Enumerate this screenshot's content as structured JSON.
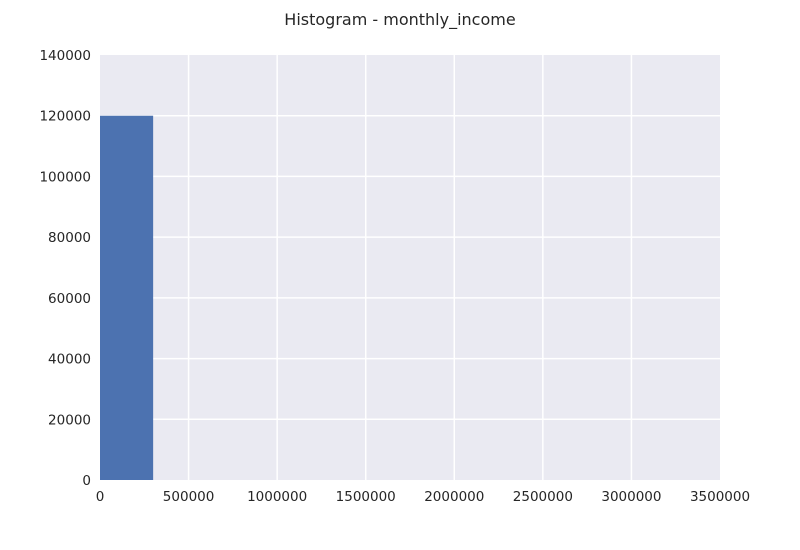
{
  "chart_data": {
    "type": "bar",
    "title": "Histogram - monthly_income",
    "xlabel": "",
    "ylabel": "",
    "xlim": [
      0,
      3500000
    ],
    "ylim": [
      0,
      140000
    ],
    "x_ticks": [
      "0",
      "500000",
      "1000000",
      "1500000",
      "2000000",
      "2500000",
      "3000000",
      "3500000"
    ],
    "y_ticks": [
      "0",
      "20000",
      "40000",
      "60000",
      "80000",
      "100000",
      "120000",
      "140000"
    ],
    "bins": [
      {
        "start": 0,
        "end": 300000,
        "count": 120000
      },
      {
        "start": 300000,
        "end": 600000,
        "count": 0
      },
      {
        "start": 600000,
        "end": 900000,
        "count": 0
      },
      {
        "start": 900000,
        "end": 1200000,
        "count": 0
      },
      {
        "start": 1200000,
        "end": 1500000,
        "count": 0
      },
      {
        "start": 1500000,
        "end": 1800000,
        "count": 0
      },
      {
        "start": 1800000,
        "end": 2100000,
        "count": 0
      },
      {
        "start": 2100000,
        "end": 2400000,
        "count": 0
      },
      {
        "start": 2400000,
        "end": 2700000,
        "count": 0
      },
      {
        "start": 2700000,
        "end": 3000000,
        "count": 0
      }
    ],
    "grid": true,
    "colors": {
      "bar": "#4c72b0",
      "background": "#eaeaf2",
      "grid": "#ffffff",
      "text": "#262626"
    }
  }
}
